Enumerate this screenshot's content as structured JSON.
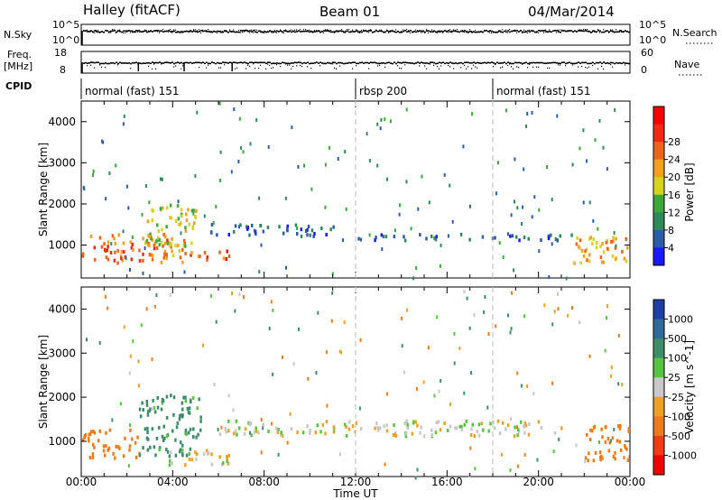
{
  "header": {
    "station": "Halley (fitACF)",
    "beam": "Beam 01",
    "date": "04/Mar/2014"
  },
  "strip_labels": {
    "nsky": "N.Sky",
    "nsky_top": "10^5",
    "nsky_bottom": "10^0",
    "nsearch": "N.Search",
    "nsearch_top": "10^5",
    "nsearch_bottom": "10^0",
    "freq": "Freq.",
    "freq_unit": "[MHz]",
    "freq_top": "18",
    "freq_bottom": "8",
    "nave": "Nave",
    "nave_top": "60",
    "nave_bottom": "0",
    "cpid": "CPID"
  },
  "cpid_segments": [
    {
      "label": "normal (fast) 151",
      "start_hour": 0
    },
    {
      "label": "rbsp 200",
      "start_hour": 12
    },
    {
      "label": "normal (fast) 151",
      "start_hour": 18
    }
  ],
  "axes": {
    "xlabel": "Time UT",
    "xticks": [
      "00:00",
      "04:00",
      "08:00",
      "12:00",
      "16:00",
      "20:00",
      "00:00"
    ],
    "ylabel": "Slant Range [km]",
    "yticks": [
      "1000",
      "2000",
      "3000",
      "4000"
    ]
  },
  "power_scale": {
    "label": "Power [dB]",
    "ticks": [
      "4",
      "8",
      "12",
      "16",
      "20",
      "24",
      "28"
    ],
    "colors": [
      "#1919ff",
      "#2c5ba8",
      "#2e8a5c",
      "#3aa83a",
      "#d6d21f",
      "#f5a01a",
      "#f06418",
      "#ee2a14",
      "#f50000"
    ]
  },
  "velocity_scale": {
    "label": "Velocity [m s^-1]",
    "ticks": [
      "1000",
      "500",
      "100",
      "25",
      "-25",
      "-100",
      "-500",
      "-1000"
    ],
    "colors": [
      "#1f3fa8",
      "#2f6a9a",
      "#3d8c6a",
      "#55c640",
      "#c8c8c8",
      "#f0a020",
      "#f07a18",
      "#f03c12",
      "#ee0000"
    ]
  },
  "chart_data": [
    {
      "type": "heatmap",
      "title": "Power",
      "ylabel": "Slant Range [km]",
      "xlabel": "Time UT",
      "xlim": [
        0,
        24
      ],
      "ylim": [
        200,
        4500
      ],
      "unit": "dB",
      "features": [
        {
          "t0": 0.0,
          "t1": 4.5,
          "r0": 600,
          "r1": 1300,
          "v": 22
        },
        {
          "t0": 2.8,
          "t1": 5.0,
          "r0": 1000,
          "r1": 2100,
          "v": 16
        },
        {
          "t0": 4.5,
          "t1": 6.5,
          "r0": 650,
          "r1": 900,
          "v": 24
        },
        {
          "t0": 5.5,
          "t1": 11.0,
          "r0": 1250,
          "r1": 1550,
          "v": 6
        },
        {
          "t0": 12.0,
          "t1": 21.5,
          "r0": 1150,
          "r1": 1300,
          "v": 5
        },
        {
          "t0": 21.5,
          "t1": 24.0,
          "r0": 600,
          "r1": 1300,
          "v": 20
        }
      ]
    },
    {
      "type": "heatmap",
      "title": "Velocity",
      "ylabel": "Slant Range [km]",
      "xlabel": "Time UT",
      "xlim": [
        0,
        24
      ],
      "ylim": [
        200,
        4500
      ],
      "unit": "m s^-1",
      "features": [
        {
          "t0": 0.0,
          "t1": 2.5,
          "r0": 650,
          "r1": 1300,
          "v": -300
        },
        {
          "t0": 2.5,
          "t1": 5.2,
          "r0": 700,
          "r1": 2100,
          "v": 150
        },
        {
          "t0": 3.5,
          "t1": 6.5,
          "r0": 500,
          "r1": 850,
          "v": 0
        },
        {
          "t0": 6.0,
          "t1": 21.0,
          "r0": 1150,
          "r1": 1500,
          "v": 0
        },
        {
          "t0": 22.0,
          "t1": 24.0,
          "r0": 600,
          "r1": 1400,
          "v": -400
        }
      ]
    }
  ]
}
